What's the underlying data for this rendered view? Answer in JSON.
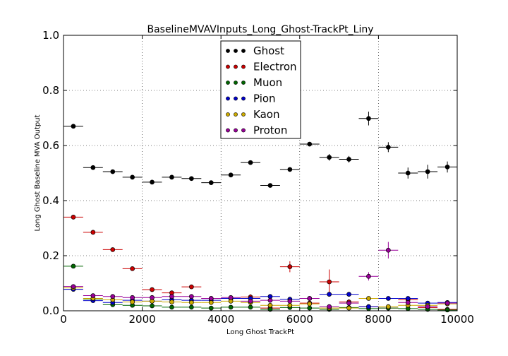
{
  "chart_data": {
    "type": "scatter",
    "title": "BaselineMVAVInputs_Long_Ghost-TrackPt_Liny",
    "xlabel": "Long Ghost TrackPt",
    "ylabel": "Long Ghost Baseline MVA Output",
    "xlim": [
      0,
      10000
    ],
    "ylim": [
      0.0,
      1.0
    ],
    "xticks": [
      "0",
      "2000",
      "4000",
      "6000",
      "8000",
      "10000"
    ],
    "yticks": [
      "0.0",
      "0.2",
      "0.4",
      "0.6",
      "0.8",
      "1.0"
    ],
    "grid": true,
    "legend_position": "top-center",
    "bin_half_width": 250,
    "x": [
      250,
      750,
      1250,
      1750,
      2250,
      2750,
      3250,
      3750,
      4250,
      4750,
      5250,
      5750,
      6250,
      6750,
      7250,
      7750,
      8250,
      8750,
      9250,
      9750
    ],
    "series": [
      {
        "name": "Ghost",
        "color": "#000000",
        "values": [
          0.67,
          0.52,
          0.505,
          0.485,
          0.467,
          0.485,
          0.48,
          0.465,
          0.493,
          0.538,
          0.455,
          0.513,
          0.605,
          0.557,
          0.55,
          0.698,
          0.594,
          0.5,
          0.505,
          0.522
        ],
        "errors": [
          0.004,
          0.005,
          0.005,
          0.005,
          0.005,
          0.005,
          0.005,
          0.005,
          0.006,
          0.006,
          0.007,
          0.007,
          0.008,
          0.012,
          0.012,
          0.025,
          0.018,
          0.02,
          0.025,
          0.02
        ]
      },
      {
        "name": "Electron",
        "color": "#cc0000",
        "values": [
          0.34,
          0.285,
          0.222,
          0.153,
          0.077,
          0.065,
          0.087,
          0.045,
          0.045,
          0.05,
          0.01,
          0.16,
          0.028,
          0.105,
          0.032,
          0.015,
          0.01,
          0.04,
          0.012,
          0.005
        ],
        "errors": [
          0.004,
          0.004,
          0.004,
          0.004,
          0.004,
          0.004,
          0.004,
          0.005,
          0.005,
          0.01,
          0.005,
          0.02,
          0.008,
          0.045,
          0.01,
          0.008,
          0.008,
          0.01,
          0.008,
          0.004
        ]
      },
      {
        "name": "Muon",
        "color": "#006600",
        "values": [
          0.162,
          0.043,
          0.022,
          0.02,
          0.018,
          0.013,
          0.013,
          0.01,
          0.013,
          0.013,
          0.005,
          0.012,
          0.01,
          0.005,
          0.012,
          0.008,
          0.01,
          0.008,
          0.005,
          0.003
        ],
        "errors": [
          0.003,
          0.002,
          0.002,
          0.002,
          0.002,
          0.002,
          0.002,
          0.002,
          0.002,
          0.003,
          0.003,
          0.003,
          0.003,
          0.003,
          0.003,
          0.003,
          0.003,
          0.003,
          0.003,
          0.002
        ]
      },
      {
        "name": "Pion",
        "color": "#0000cc",
        "values": [
          0.078,
          0.037,
          0.03,
          0.038,
          0.035,
          0.04,
          0.038,
          0.038,
          0.045,
          0.045,
          0.052,
          0.042,
          0.045,
          0.06,
          0.06,
          0.015,
          0.045,
          0.045,
          0.028,
          0.03
        ],
        "errors": [
          0.003,
          0.003,
          0.003,
          0.003,
          0.003,
          0.003,
          0.003,
          0.004,
          0.004,
          0.004,
          0.005,
          0.005,
          0.005,
          0.006,
          0.006,
          0.006,
          0.006,
          0.006,
          0.006,
          0.006
        ]
      },
      {
        "name": "Kaon",
        "color": "#ccaa00",
        "values": [
          0.083,
          0.045,
          0.04,
          0.032,
          0.035,
          0.032,
          0.03,
          0.03,
          0.035,
          0.03,
          0.02,
          0.02,
          0.025,
          0.01,
          0.01,
          0.045,
          0.015,
          0.02,
          0.02,
          0.025
        ],
        "errors": [
          0.003,
          0.003,
          0.003,
          0.003,
          0.003,
          0.003,
          0.003,
          0.003,
          0.004,
          0.004,
          0.005,
          0.005,
          0.005,
          0.005,
          0.005,
          0.006,
          0.006,
          0.006,
          0.006,
          0.006
        ]
      },
      {
        "name": "Proton",
        "color": "#990099",
        "values": [
          0.088,
          0.055,
          0.052,
          0.048,
          0.048,
          0.052,
          0.052,
          0.045,
          0.048,
          0.035,
          0.038,
          0.035,
          0.045,
          0.015,
          0.028,
          0.125,
          0.22,
          0.03,
          0.015,
          0.028
        ],
        "errors": [
          0.003,
          0.003,
          0.003,
          0.003,
          0.003,
          0.003,
          0.003,
          0.004,
          0.004,
          0.004,
          0.005,
          0.005,
          0.006,
          0.006,
          0.008,
          0.015,
          0.03,
          0.01,
          0.008,
          0.008
        ]
      }
    ]
  }
}
